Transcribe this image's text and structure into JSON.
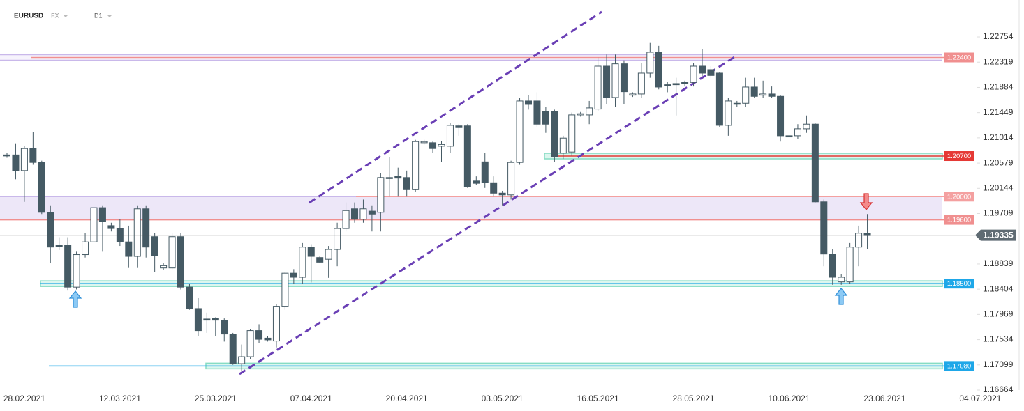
{
  "chart_data": {
    "type": "candlestick",
    "symbol": "EURUSD",
    "market": "FX",
    "timeframe": "D1",
    "categories": [
      null,
      null,
      "28.02.2021",
      null,
      null,
      null,
      null,
      null,
      null,
      null,
      null,
      null,
      null,
      "12.03.2021",
      null,
      null,
      null,
      null,
      null,
      null,
      null,
      null,
      null,
      null,
      "25.03.2021",
      null,
      null,
      null,
      null,
      null,
      null,
      null,
      null,
      null,
      null,
      "07.04.2021",
      null,
      null,
      null,
      null,
      null,
      null,
      null,
      null,
      null,
      null,
      "20.04.2021",
      null,
      null,
      null,
      null,
      null,
      null,
      null,
      null,
      null,
      null,
      "03.05.2021",
      null,
      null,
      null,
      null,
      null,
      null,
      null,
      null,
      null,
      null,
      "16.05.2021",
      null,
      null,
      null,
      null,
      null,
      null,
      null,
      null,
      null,
      null,
      "28.05.2021",
      null,
      null,
      null,
      null,
      null,
      null,
      null,
      null,
      null,
      null,
      "10.06.2021",
      null,
      null,
      null,
      null,
      null,
      null,
      null,
      null,
      null,
      null,
      "23.06.2021",
      null,
      null,
      null,
      null,
      null,
      null,
      null,
      null,
      null,
      null,
      "04.07.2021"
    ],
    "series": [
      {
        "up_color": "#ffffff",
        "down_color": "#455a64",
        "edge_color": "#455a64",
        "open": [
          1.2072,
          1.2072,
          1.2045,
          1.2083,
          1.2059,
          1.1973,
          1.1916,
          1.1916,
          1.1844,
          1.19,
          1.1922,
          1.1981,
          1.195,
          1.1945,
          1.1922,
          1.1897,
          1.1979,
          1.1931,
          1.1877,
          1.1877,
          1.1931,
          1.1844,
          1.1807,
          1.1789,
          1.179,
          1.1787,
          1.1763,
          1.1712,
          1.1724,
          1.1769,
          1.1756,
          1.1751,
          1.1811,
          1.1868,
          1.1861,
          1.1913,
          1.1895,
          1.1892,
          1.1909,
          1.1945,
          1.1979,
          1.1961,
          1.1975,
          1.1973,
          1.2033,
          1.2035,
          1.2033,
          1.2012,
          1.2093,
          1.2093,
          1.2087,
          1.2087,
          1.2122,
          1.2122,
          1.2027,
          1.206,
          1.2024,
          1.2006,
          1.2003,
          1.2059,
          1.2165,
          1.2165,
          1.2147,
          1.2147,
          1.2075,
          1.2077,
          1.2141,
          1.2141,
          1.2151,
          1.2225,
          1.2171,
          1.2229,
          1.2175,
          1.2177,
          1.2213,
          1.2249,
          1.2193,
          1.2195,
          1.2197,
          1.2197,
          1.2225,
          1.2219,
          1.2213,
          1.2123,
          1.2161,
          1.2161,
          1.2189,
          1.2175,
          1.2177,
          1.2173,
          1.2105,
          1.2105,
          1.2117,
          1.2125,
          1.1991,
          1.1901,
          1.1853,
          1.1853,
          1.1913,
          1.1937,
          null,
          null,
          null,
          null,
          null,
          null,
          null,
          null,
          null,
          null,
          null,
          null,
          null
        ],
        "high": [
          1.2076,
          1.2092,
          1.2088,
          1.2112,
          1.2062,
          1.1985,
          1.193,
          1.193,
          1.1905,
          1.1937,
          1.1985,
          1.1985,
          1.1955,
          1.1961,
          1.195,
          1.1985,
          1.1985,
          1.1937,
          1.1885,
          1.1937,
          1.1937,
          1.185,
          1.1825,
          1.18,
          1.1792,
          1.179,
          1.1765,
          1.1745,
          1.1772,
          1.178,
          1.176,
          1.1815,
          1.187,
          1.1875,
          1.192,
          1.1918,
          1.1898,
          1.1915,
          1.1955,
          1.199,
          1.199,
          1.1995,
          1.1985,
          1.204,
          1.2068,
          1.205,
          1.2045,
          1.2098,
          1.2098,
          1.2095,
          1.2096,
          1.2127,
          1.2125,
          1.2125,
          1.2035,
          1.2075,
          1.2035,
          1.201,
          1.2062,
          1.217,
          1.2175,
          1.218,
          1.2155,
          1.215,
          1.2105,
          1.2145,
          1.2146,
          1.2165,
          1.224,
          1.2245,
          1.2245,
          1.2235,
          1.218,
          1.223,
          1.2265,
          1.226,
          1.2198,
          1.2205,
          1.22,
          1.223,
          1.2255,
          1.2225,
          1.2215,
          1.217,
          1.2165,
          1.2205,
          1.2205,
          1.22,
          1.219,
          1.2175,
          1.2108,
          1.2125,
          1.214,
          1.2127,
          1.1995,
          1.191,
          1.1866,
          1.192,
          1.195,
          1.197,
          null,
          null,
          null,
          null,
          null,
          null,
          null,
          null,
          null,
          null,
          null,
          null,
          null
        ],
        "low": [
          1.2067,
          1.203,
          1.1991,
          1.2055,
          1.197,
          1.1885,
          1.1908,
          1.1838,
          1.184,
          1.1895,
          1.1912,
          1.1905,
          1.194,
          1.1915,
          1.1877,
          1.1877,
          1.1895,
          1.187,
          1.1873,
          1.1875,
          1.184,
          1.1805,
          1.176,
          1.1765,
          1.176,
          1.175,
          1.171,
          1.17,
          1.172,
          1.1748,
          1.175,
          1.174,
          1.1805,
          1.185,
          1.185,
          1.1852,
          1.1885,
          1.186,
          1.188,
          1.194,
          1.1955,
          1.1955,
          1.194,
          1.194,
          1.2,
          1.2,
          1.2,
          1.2008,
          1.209,
          1.2075,
          1.206,
          1.2075,
          1.2105,
          1.2015,
          1.202,
          1.2015,
          1.2,
          1.1985,
          1.1995,
          1.2055,
          1.215,
          1.212,
          1.211,
          1.206,
          1.2065,
          1.207,
          1.2138,
          1.2125,
          1.2148,
          1.216,
          1.2155,
          1.216,
          1.2172,
          1.217,
          1.2205,
          1.2185,
          1.218,
          1.214,
          1.219,
          1.219,
          1.2208,
          1.2205,
          1.212,
          1.2105,
          1.2155,
          1.2155,
          1.217,
          1.217,
          1.217,
          1.2095,
          1.21,
          1.21,
          1.211,
          1.199,
          1.188,
          1.1848,
          1.1848,
          1.185,
          1.188,
          1.191,
          null,
          null,
          null,
          null,
          null,
          null,
          null,
          null,
          null,
          null,
          null,
          null,
          null
        ],
        "close": [
          1.2071,
          1.2045,
          1.2083,
          1.2059,
          1.1973,
          1.1913,
          1.1914,
          1.1844,
          1.19,
          1.1922,
          1.1981,
          1.1957,
          1.1945,
          1.1922,
          1.1897,
          1.1979,
          1.1913,
          1.1898,
          1.1881,
          1.1931,
          1.1844,
          1.1807,
          1.1769,
          1.1787,
          1.1787,
          1.1763,
          1.1712,
          1.1724,
          1.1769,
          1.1754,
          1.1753,
          1.1811,
          1.1868,
          1.1861,
          1.1913,
          1.1897,
          1.1887,
          1.1909,
          1.1945,
          1.1976,
          1.1961,
          1.1979,
          1.197,
          1.2033,
          1.2032,
          1.2032,
          1.2012,
          1.2095,
          1.2095,
          1.2083,
          1.209,
          1.2123,
          1.2119,
          1.2017,
          1.2023,
          1.2024,
          1.2006,
          1.2003,
          1.2059,
          1.2165,
          1.2159,
          1.2125,
          1.2125,
          1.2069,
          1.2101,
          1.2141,
          1.2143,
          1.2153,
          1.2225,
          1.2171,
          1.2229,
          1.2181,
          1.2177,
          1.2213,
          1.2249,
          1.2189,
          1.2192,
          1.2193,
          1.2195,
          1.2225,
          1.2213,
          1.2209,
          1.2123,
          1.2165,
          1.216,
          1.2189,
          1.2173,
          1.2177,
          1.2173,
          1.2105,
          1.2103,
          1.2117,
          1.2125,
          1.1991,
          1.1901,
          1.1861,
          1.1861,
          1.1913,
          1.1937,
          1.1933,
          null,
          null,
          null,
          null,
          null,
          null,
          null,
          null,
          null,
          null,
          null,
          null,
          null
        ]
      }
    ],
    "ylim": [
      1.16664,
      1.23391
    ],
    "yticks": [
      1.22754,
      1.22319,
      1.21884,
      1.21449,
      1.21014,
      1.20579,
      1.20144,
      1.19709,
      1.18839,
      1.18404,
      1.17969,
      1.17534,
      1.17099,
      1.16664
    ],
    "levels": [
      {
        "value": 1.224,
        "label": "1.22400",
        "color": "#f08f8f"
      },
      {
        "value": 1.207,
        "label": "1.20700",
        "color": "#e53935"
      },
      {
        "value": 1.2,
        "label": "1.20000",
        "color": "#f4a0a0"
      },
      {
        "value": 1.196,
        "label": "1.19600",
        "color": "#f08f8f"
      },
      {
        "value": 1.185,
        "label": "1.18500",
        "color": "#1ea7e8"
      },
      {
        "value": 1.1708,
        "label": "1.17080",
        "color": "#1ea7e8"
      }
    ],
    "last_price": 1.19335,
    "last_price_color": "#5f6b73"
  }
}
